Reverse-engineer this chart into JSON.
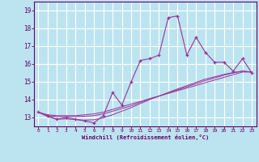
{
  "xlabel": "Windchill (Refroidissement éolien,°C)",
  "background_color": "#bce4f0",
  "grid_color": "#ffffff",
  "line_color": "#993399",
  "x_values": [
    0,
    1,
    2,
    3,
    4,
    5,
    6,
    7,
    8,
    9,
    10,
    11,
    12,
    13,
    14,
    15,
    16,
    17,
    18,
    19,
    20,
    21,
    22,
    23
  ],
  "y_main": [
    13.3,
    13.1,
    12.9,
    13.0,
    12.9,
    12.8,
    12.7,
    13.1,
    14.4,
    13.7,
    15.0,
    16.2,
    16.3,
    16.5,
    18.6,
    18.7,
    16.5,
    17.5,
    16.65,
    16.1,
    16.1,
    15.6,
    16.3,
    15.5
  ],
  "y_line1": [
    13.3,
    13.15,
    13.1,
    13.1,
    13.1,
    13.15,
    13.2,
    13.3,
    13.45,
    13.6,
    13.75,
    13.9,
    14.05,
    14.2,
    14.35,
    14.5,
    14.65,
    14.8,
    14.95,
    15.1,
    15.25,
    15.4,
    15.55,
    15.55
  ],
  "y_line2": [
    13.3,
    13.1,
    13.05,
    13.05,
    13.05,
    13.07,
    13.1,
    13.2,
    13.35,
    13.5,
    13.65,
    13.85,
    14.05,
    14.2,
    14.38,
    14.55,
    14.72,
    14.9,
    15.07,
    15.22,
    15.37,
    15.5,
    15.6,
    15.55
  ],
  "y_line3": [
    13.3,
    13.05,
    12.9,
    12.92,
    12.88,
    12.85,
    12.87,
    12.98,
    13.15,
    13.35,
    13.55,
    13.78,
    14.0,
    14.2,
    14.4,
    14.6,
    14.78,
    14.97,
    15.15,
    15.28,
    15.42,
    15.52,
    15.6,
    15.55
  ],
  "ylim": [
    12.5,
    19.5
  ],
  "yticks": [
    13,
    14,
    15,
    16,
    17,
    18,
    19
  ],
  "xticks": [
    0,
    1,
    2,
    3,
    4,
    5,
    6,
    7,
    8,
    9,
    10,
    11,
    12,
    13,
    14,
    15,
    16,
    17,
    18,
    19,
    20,
    21,
    22,
    23
  ]
}
